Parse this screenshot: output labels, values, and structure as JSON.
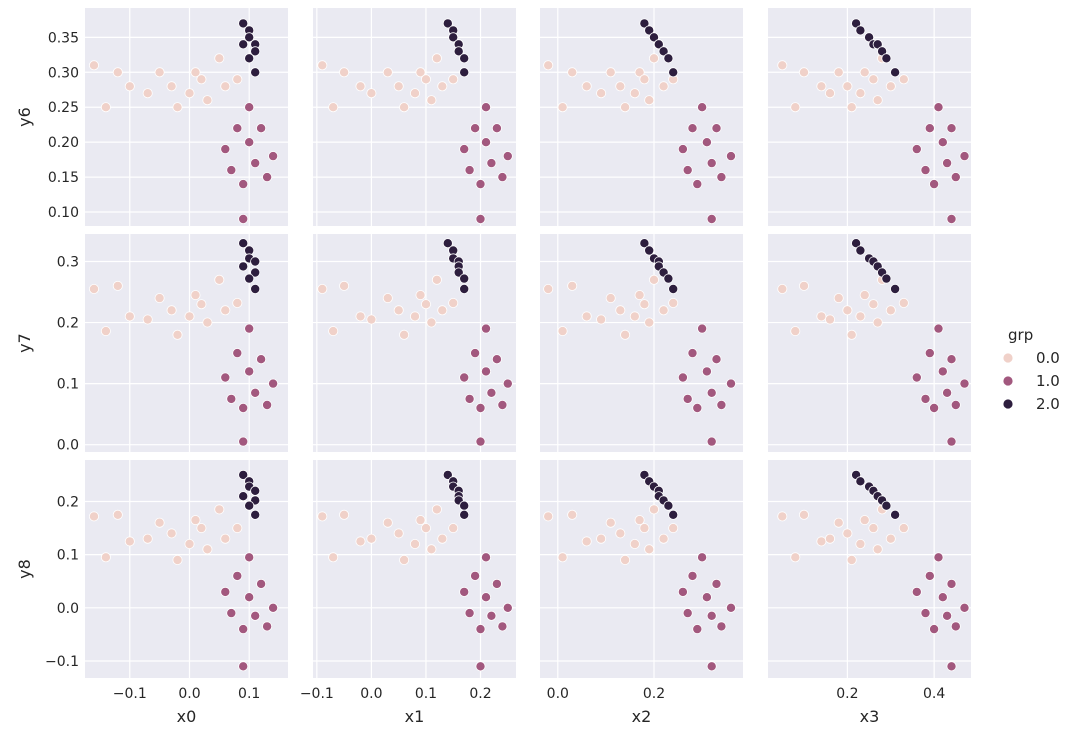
{
  "chart_data": {
    "type": "scatter",
    "style": "seaborn-darkgrid pairgrid",
    "grid": true,
    "legend_position": "right",
    "legend": {
      "title": "grp",
      "entries": [
        {
          "label": "0.0",
          "color": "#f0d1c9"
        },
        {
          "label": "1.0",
          "color": "#a2587e"
        },
        {
          "label": "2.0",
          "color": "#2d1e3e"
        }
      ]
    },
    "columns": [
      {
        "var": "x0",
        "xlabel": "x0",
        "xlim": [
          -0.175,
          0.165
        ],
        "ticks": [
          -0.1,
          0.0,
          0.1
        ],
        "tick_labels": [
          "−0.1",
          "0.0",
          "0.1"
        ]
      },
      {
        "var": "x1",
        "xlabel": "x1",
        "xlim": [
          -0.107,
          0.265
        ],
        "ticks": [
          -0.1,
          0.0,
          0.1,
          0.2
        ],
        "tick_labels": [
          "−0.1",
          "0.0",
          "0.1",
          "0.2"
        ]
      },
      {
        "var": "x2",
        "xlabel": "x2",
        "xlim": [
          -0.037,
          0.385
        ],
        "ticks": [
          0.0,
          0.2
        ],
        "tick_labels": [
          "0.0",
          "0.2"
        ]
      },
      {
        "var": "x3",
        "xlabel": "x3",
        "xlim": [
          0.017,
          0.485
        ],
        "ticks": [
          0.2,
          0.4
        ],
        "tick_labels": [
          "0.2",
          "0.4"
        ]
      }
    ],
    "rows": [
      {
        "var": "y6",
        "ylabel": "y6",
        "ylim": [
          0.08,
          0.392
        ],
        "ticks": [
          0.1,
          0.15,
          0.2,
          0.25,
          0.3,
          0.35
        ],
        "tick_labels": [
          "0.10",
          "0.15",
          "0.20",
          "0.25",
          "0.30",
          "0.35"
        ]
      },
      {
        "var": "y7",
        "ylabel": "y7",
        "ylim": [
          -0.012,
          0.345
        ],
        "ticks": [
          0.0,
          0.1,
          0.2,
          0.3
        ],
        "tick_labels": [
          "0.0",
          "0.1",
          "0.2",
          "0.3"
        ]
      },
      {
        "var": "y8",
        "ylabel": "y8",
        "ylim": [
          -0.132,
          0.278
        ],
        "ticks": [
          -0.1,
          0.0,
          0.1,
          0.2
        ],
        "tick_labels": [
          "−0.1",
          "0.0",
          "0.1",
          "0.2"
        ]
      }
    ],
    "series": [
      {
        "name": "0.0",
        "color": "#f0d1c9",
        "points": [
          {
            "x0": -0.16,
            "x1": -0.09,
            "x2": -0.02,
            "x3": 0.05,
            "y6": 0.31,
            "y7": 0.255,
            "y8": 0.172
          },
          {
            "x0": -0.14,
            "x1": -0.07,
            "x2": 0.01,
            "x3": 0.08,
            "y6": 0.25,
            "y7": 0.186,
            "y8": 0.095
          },
          {
            "x0": -0.12,
            "x1": -0.05,
            "x2": 0.03,
            "x3": 0.1,
            "y6": 0.3,
            "y7": 0.26,
            "y8": 0.175
          },
          {
            "x0": -0.1,
            "x1": -0.02,
            "x2": 0.06,
            "x3": 0.14,
            "y6": 0.28,
            "y7": 0.21,
            "y8": 0.125
          },
          {
            "x0": -0.07,
            "x1": 0.0,
            "x2": 0.09,
            "x3": 0.16,
            "y6": 0.27,
            "y7": 0.205,
            "y8": 0.13
          },
          {
            "x0": -0.05,
            "x1": 0.03,
            "x2": 0.11,
            "x3": 0.18,
            "y6": 0.3,
            "y7": 0.24,
            "y8": 0.16
          },
          {
            "x0": -0.03,
            "x1": 0.05,
            "x2": 0.13,
            "x3": 0.2,
            "y6": 0.28,
            "y7": 0.22,
            "y8": 0.14
          },
          {
            "x0": -0.02,
            "x1": 0.06,
            "x2": 0.14,
            "x3": 0.21,
            "y6": 0.25,
            "y7": 0.18,
            "y8": 0.09
          },
          {
            "x0": 0.0,
            "x1": 0.08,
            "x2": 0.16,
            "x3": 0.23,
            "y6": 0.27,
            "y7": 0.21,
            "y8": 0.12
          },
          {
            "x0": 0.01,
            "x1": 0.09,
            "x2": 0.17,
            "x3": 0.24,
            "y6": 0.3,
            "y7": 0.245,
            "y8": 0.165
          },
          {
            "x0": 0.02,
            "x1": 0.1,
            "x2": 0.18,
            "x3": 0.26,
            "y6": 0.29,
            "y7": 0.23,
            "y8": 0.15
          },
          {
            "x0": 0.03,
            "x1": 0.11,
            "x2": 0.19,
            "x3": 0.27,
            "y6": 0.26,
            "y7": 0.2,
            "y8": 0.11
          },
          {
            "x0": 0.05,
            "x1": 0.12,
            "x2": 0.2,
            "x3": 0.28,
            "y6": 0.32,
            "y7": 0.27,
            "y8": 0.185
          },
          {
            "x0": 0.06,
            "x1": 0.13,
            "x2": 0.22,
            "x3": 0.3,
            "y6": 0.28,
            "y7": 0.22,
            "y8": 0.13
          },
          {
            "x0": 0.08,
            "x1": 0.15,
            "x2": 0.24,
            "x3": 0.33,
            "y6": 0.29,
            "y7": 0.232,
            "y8": 0.15
          }
        ]
      },
      {
        "name": "1.0",
        "color": "#a2587e",
        "points": [
          {
            "x0": 0.06,
            "x1": 0.17,
            "x2": 0.26,
            "x3": 0.36,
            "y6": 0.19,
            "y7": 0.11,
            "y8": 0.03
          },
          {
            "x0": 0.07,
            "x1": 0.18,
            "x2": 0.27,
            "x3": 0.38,
            "y6": 0.16,
            "y7": 0.075,
            "y8": -0.01
          },
          {
            "x0": 0.08,
            "x1": 0.19,
            "x2": 0.28,
            "x3": 0.39,
            "y6": 0.22,
            "y7": 0.15,
            "y8": 0.06
          },
          {
            "x0": 0.09,
            "x1": 0.2,
            "x2": 0.29,
            "x3": 0.4,
            "y6": 0.14,
            "y7": 0.06,
            "y8": -0.04
          },
          {
            "x0": 0.1,
            "x1": 0.21,
            "x2": 0.3,
            "x3": 0.41,
            "y6": 0.25,
            "y7": 0.19,
            "y8": 0.095
          },
          {
            "x0": 0.1,
            "x1": 0.21,
            "x2": 0.31,
            "x3": 0.42,
            "y6": 0.2,
            "y7": 0.12,
            "y8": 0.02
          },
          {
            "x0": 0.11,
            "x1": 0.22,
            "x2": 0.32,
            "x3": 0.43,
            "y6": 0.17,
            "y7": 0.085,
            "y8": -0.015
          },
          {
            "x0": 0.12,
            "x1": 0.23,
            "x2": 0.33,
            "x3": 0.44,
            "y6": 0.22,
            "y7": 0.14,
            "y8": 0.045
          },
          {
            "x0": 0.13,
            "x1": 0.24,
            "x2": 0.34,
            "x3": 0.45,
            "y6": 0.15,
            "y7": 0.065,
            "y8": -0.035
          },
          {
            "x0": 0.14,
            "x1": 0.25,
            "x2": 0.36,
            "x3": 0.47,
            "y6": 0.18,
            "y7": 0.1,
            "y8": 0.0
          },
          {
            "x0": 0.09,
            "x1": 0.2,
            "x2": 0.32,
            "x3": 0.44,
            "y6": 0.09,
            "y7": 0.005,
            "y8": -0.11
          }
        ]
      },
      {
        "name": "2.0",
        "color": "#2d1e3e",
        "points": [
          {
            "x0": 0.09,
            "x1": 0.14,
            "x2": 0.18,
            "x3": 0.22,
            "y6": 0.37,
            "y7": 0.33,
            "y8": 0.25
          },
          {
            "x0": 0.1,
            "x1": 0.15,
            "x2": 0.19,
            "x3": 0.23,
            "y6": 0.36,
            "y7": 0.318,
            "y8": 0.238
          },
          {
            "x0": 0.1,
            "x1": 0.15,
            "x2": 0.2,
            "x3": 0.25,
            "y6": 0.35,
            "y7": 0.305,
            "y8": 0.228
          },
          {
            "x0": 0.11,
            "x1": 0.16,
            "x2": 0.21,
            "x3": 0.26,
            "y6": 0.34,
            "y7": 0.3,
            "y8": 0.22
          },
          {
            "x0": 0.09,
            "x1": 0.16,
            "x2": 0.21,
            "x3": 0.27,
            "y6": 0.34,
            "y7": 0.292,
            "y8": 0.21
          },
          {
            "x0": 0.11,
            "x1": 0.16,
            "x2": 0.22,
            "x3": 0.28,
            "y6": 0.33,
            "y7": 0.282,
            "y8": 0.202
          },
          {
            "x0": 0.1,
            "x1": 0.17,
            "x2": 0.23,
            "x3": 0.29,
            "y6": 0.32,
            "y7": 0.272,
            "y8": 0.192
          },
          {
            "x0": 0.11,
            "x1": 0.17,
            "x2": 0.24,
            "x3": 0.31,
            "y6": 0.3,
            "y7": 0.255,
            "y8": 0.175
          }
        ]
      }
    ]
  }
}
